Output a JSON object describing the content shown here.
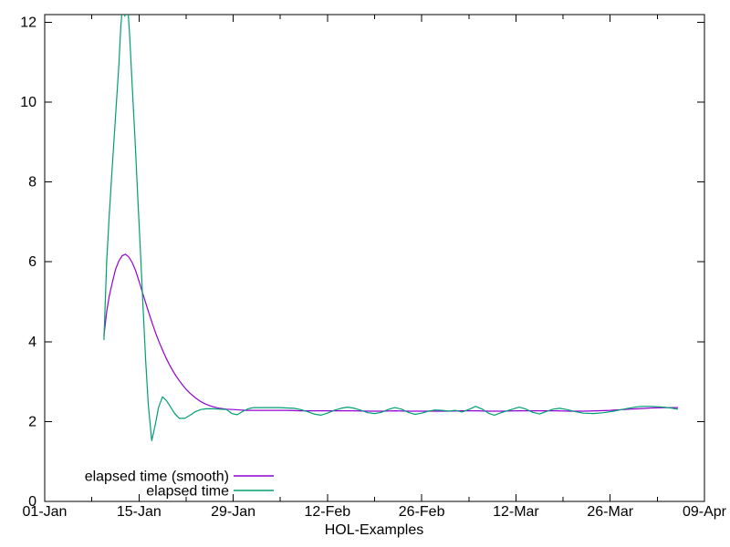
{
  "window": {
    "background": "#ffffff"
  },
  "chart_data": {
    "type": "line",
    "title": "",
    "xlabel": "HOL-Examples",
    "ylabel": "",
    "grid": false,
    "legend_position": "bottom-left-inside",
    "x_axis": {
      "unit": "date",
      "range_days": [
        0,
        98
      ],
      "major_tick_days": [
        0,
        14,
        28,
        42,
        56,
        70,
        84,
        98
      ],
      "major_tick_labels": [
        "01-Jan",
        "15-Jan",
        "29-Jan",
        "12-Feb",
        "26-Feb",
        "12-Mar",
        "26-Mar",
        "09-Apr"
      ],
      "minor_tick_days": [
        7,
        21,
        35,
        49,
        63,
        77,
        91
      ]
    },
    "y_axis": {
      "range": [
        0,
        12.19
      ],
      "major_ticks": [
        0,
        2,
        4,
        6,
        8,
        10,
        12
      ],
      "major_tick_labels": [
        "0",
        "2",
        "4",
        "6",
        "8",
        "10",
        "12"
      ]
    },
    "series": [
      {
        "name": "elapsed time (smooth)",
        "color": "#9400d3",
        "points": [
          [
            8.8,
            4.15
          ],
          [
            9.2,
            4.75
          ],
          [
            9.6,
            5.15
          ],
          [
            10,
            5.45
          ],
          [
            10.5,
            5.8
          ],
          [
            11,
            6.02
          ],
          [
            11.5,
            6.15
          ],
          [
            12,
            6.19
          ],
          [
            12.5,
            6.12
          ],
          [
            13,
            5.98
          ],
          [
            13.5,
            5.78
          ],
          [
            14,
            5.52
          ],
          [
            14.5,
            5.24
          ],
          [
            15,
            4.97
          ],
          [
            15.5,
            4.7
          ],
          [
            16,
            4.45
          ],
          [
            16.5,
            4.21
          ],
          [
            17,
            3.99
          ],
          [
            17.5,
            3.79
          ],
          [
            18,
            3.6
          ],
          [
            18.5,
            3.43
          ],
          [
            19,
            3.28
          ],
          [
            19.5,
            3.14
          ],
          [
            20,
            3.02
          ],
          [
            20.5,
            2.91
          ],
          [
            21,
            2.81
          ],
          [
            21.5,
            2.72
          ],
          [
            22,
            2.65
          ],
          [
            22.5,
            2.58
          ],
          [
            23,
            2.52
          ],
          [
            23.5,
            2.47
          ],
          [
            24,
            2.43
          ],
          [
            25,
            2.37
          ],
          [
            26,
            2.33
          ],
          [
            27,
            2.31
          ],
          [
            28,
            2.3
          ],
          [
            29,
            2.29
          ],
          [
            30,
            2.28
          ],
          [
            32,
            2.28
          ],
          [
            34,
            2.28
          ],
          [
            36,
            2.28
          ],
          [
            38,
            2.27
          ],
          [
            40,
            2.27
          ],
          [
            42,
            2.27
          ],
          [
            44,
            2.27
          ],
          [
            46,
            2.27
          ],
          [
            48,
            2.26
          ],
          [
            50,
            2.26
          ],
          [
            52,
            2.27
          ],
          [
            54,
            2.26
          ],
          [
            56,
            2.26
          ],
          [
            58,
            2.26
          ],
          [
            60,
            2.26
          ],
          [
            62,
            2.27
          ],
          [
            64,
            2.27
          ],
          [
            66,
            2.26
          ],
          [
            68,
            2.26
          ],
          [
            70,
            2.27
          ],
          [
            72,
            2.27
          ],
          [
            74,
            2.27
          ],
          [
            76,
            2.27
          ],
          [
            78,
            2.26
          ],
          [
            80,
            2.26
          ],
          [
            82,
            2.27
          ],
          [
            84,
            2.28
          ],
          [
            86,
            2.3
          ],
          [
            88,
            2.32
          ],
          [
            90,
            2.34
          ],
          [
            92,
            2.35
          ],
          [
            94,
            2.35
          ]
        ]
      },
      {
        "name": "elapsed time",
        "color": "#009e73",
        "points": [
          [
            8.8,
            4.05
          ],
          [
            9.2,
            6.0
          ],
          [
            9.6,
            7.2
          ],
          [
            10,
            8.3
          ],
          [
            10.5,
            9.6
          ],
          [
            11,
            10.9
          ],
          [
            11.3,
            11.9
          ],
          [
            11.6,
            12.5
          ],
          [
            11.9,
            12.15
          ],
          [
            12.3,
            12.5
          ],
          [
            12.6,
            11.7
          ],
          [
            13,
            10.4
          ],
          [
            13.4,
            9.1
          ],
          [
            13.8,
            7.7
          ],
          [
            14.2,
            6.3
          ],
          [
            14.6,
            4.9
          ],
          [
            15,
            3.5
          ],
          [
            15.4,
            2.4
          ],
          [
            15.9,
            1.52
          ],
          [
            16.4,
            1.9
          ],
          [
            16.9,
            2.35
          ],
          [
            17.5,
            2.62
          ],
          [
            18.1,
            2.52
          ],
          [
            18.7,
            2.36
          ],
          [
            19.3,
            2.2
          ],
          [
            20,
            2.08
          ],
          [
            20.8,
            2.08
          ],
          [
            21.6,
            2.16
          ],
          [
            22.4,
            2.25
          ],
          [
            23.2,
            2.3
          ],
          [
            24,
            2.32
          ],
          [
            25,
            2.32
          ],
          [
            26,
            2.31
          ],
          [
            27,
            2.3
          ],
          [
            27.8,
            2.2
          ],
          [
            28.6,
            2.17
          ],
          [
            29.4,
            2.25
          ],
          [
            30.2,
            2.32
          ],
          [
            31,
            2.35
          ],
          [
            32,
            2.35
          ],
          [
            33,
            2.35
          ],
          [
            34,
            2.35
          ],
          [
            35,
            2.35
          ],
          [
            36,
            2.34
          ],
          [
            37,
            2.33
          ],
          [
            38,
            2.3
          ],
          [
            39,
            2.25
          ],
          [
            40,
            2.19
          ],
          [
            41,
            2.16
          ],
          [
            42,
            2.21
          ],
          [
            43,
            2.28
          ],
          [
            44,
            2.33
          ],
          [
            45,
            2.36
          ],
          [
            46,
            2.33
          ],
          [
            47,
            2.28
          ],
          [
            48,
            2.22
          ],
          [
            49,
            2.2
          ],
          [
            50,
            2.23
          ],
          [
            51,
            2.3
          ],
          [
            52,
            2.35
          ],
          [
            53,
            2.31
          ],
          [
            54,
            2.23
          ],
          [
            55,
            2.18
          ],
          [
            56,
            2.21
          ],
          [
            57,
            2.26
          ],
          [
            58,
            2.29
          ],
          [
            59,
            2.28
          ],
          [
            60,
            2.26
          ],
          [
            61,
            2.28
          ],
          [
            62,
            2.24
          ],
          [
            63,
            2.3
          ],
          [
            64,
            2.38
          ],
          [
            65,
            2.31
          ],
          [
            66,
            2.2
          ],
          [
            66.8,
            2.16
          ],
          [
            67.6,
            2.21
          ],
          [
            68.5,
            2.26
          ],
          [
            69.5,
            2.31
          ],
          [
            70.5,
            2.36
          ],
          [
            71.5,
            2.31
          ],
          [
            72.5,
            2.23
          ],
          [
            73.5,
            2.19
          ],
          [
            74.5,
            2.25
          ],
          [
            75.5,
            2.31
          ],
          [
            76.5,
            2.33
          ],
          [
            77.5,
            2.3
          ],
          [
            78.5,
            2.26
          ],
          [
            80,
            2.21
          ],
          [
            81.5,
            2.2
          ],
          [
            83,
            2.22
          ],
          [
            84.5,
            2.26
          ],
          [
            86,
            2.31
          ],
          [
            87,
            2.34
          ],
          [
            88,
            2.37
          ],
          [
            89,
            2.38
          ],
          [
            90,
            2.38
          ],
          [
            91,
            2.37
          ],
          [
            92,
            2.36
          ],
          [
            93,
            2.34
          ],
          [
            94,
            2.31
          ]
        ]
      }
    ]
  }
}
